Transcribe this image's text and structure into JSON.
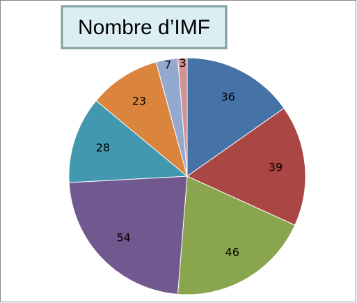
{
  "chart_data": {
    "type": "pie",
    "title": "Nombre d’IMF",
    "values": [
      36,
      39,
      46,
      54,
      28,
      23,
      7,
      3
    ],
    "colors": [
      "#4572a7",
      "#aa4643",
      "#89a54e",
      "#71588f",
      "#4198af",
      "#db843d",
      "#93a9cf",
      "#d19392"
    ],
    "start_angle": 0,
    "direction": "clockwise"
  }
}
